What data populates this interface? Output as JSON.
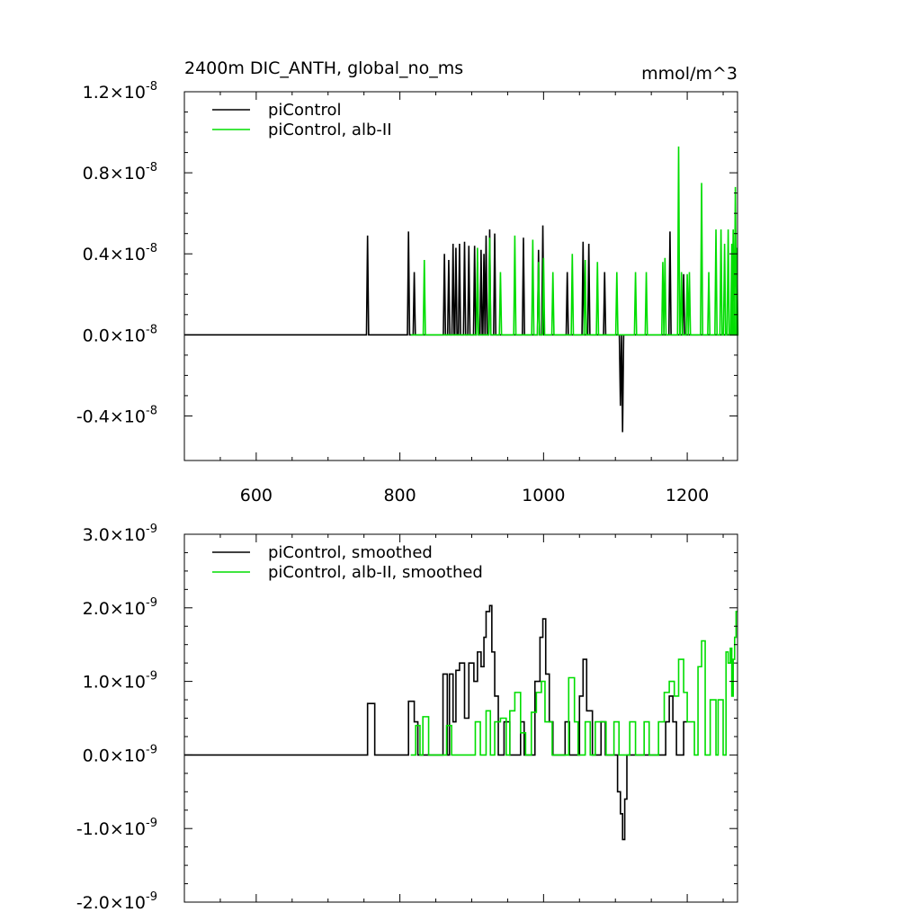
{
  "chart_data": [
    {
      "type": "line",
      "title": "2400m DIC_ANTH, global_no_ms",
      "units": "mmol/m^3",
      "xlim": [
        500,
        1270
      ],
      "ylim": [
        -6.2e-09,
        1.2e-08
      ],
      "x_ticks": [
        600,
        800,
        1000,
        1200
      ],
      "x_tick_labels": [
        "600",
        "800",
        "1000",
        "1200"
      ],
      "y_ticks": [
        {
          "value": 1.2e-08,
          "mantissa": "1.2",
          "exponent": "-8"
        },
        {
          "value": 8e-09,
          "mantissa": "0.8",
          "exponent": "-8"
        },
        {
          "value": 4e-09,
          "mantissa": "0.4",
          "exponent": "-8"
        },
        {
          "value": 0.0,
          "mantissa": "0.0",
          "exponent": "-8"
        },
        {
          "value": -4e-09,
          "mantissa": "-0.4",
          "exponent": "-8"
        }
      ],
      "legend_position": "top-left",
      "series": [
        {
          "name": "piControl",
          "color": "#000000",
          "spikes": [
            [
              755,
              4.9e-09
            ],
            [
              812,
              5.1e-09
            ],
            [
              820,
              3.1e-09
            ],
            [
              862,
              4e-09
            ],
            [
              868,
              3.7e-09
            ],
            [
              874,
              4.5e-09
            ],
            [
              878,
              4.3e-09
            ],
            [
              883,
              4.5e-09
            ],
            [
              890,
              4.6e-09
            ],
            [
              896,
              4.4e-09
            ],
            [
              904,
              4.4e-09
            ],
            [
              908,
              3.6e-09
            ],
            [
              913,
              4.2e-09
            ],
            [
              917,
              4e-09
            ],
            [
              920,
              4.9e-09
            ],
            [
              925,
              5.2e-09
            ],
            [
              932,
              5e-09
            ],
            [
              972,
              4.8e-09
            ],
            [
              993,
              4.2e-09
            ],
            [
              999,
              5.4e-09
            ],
            [
              1033,
              3.1e-09
            ],
            [
              1055,
              4.6e-09
            ],
            [
              1063,
              4.5e-09
            ],
            [
              1085,
              3.1e-09
            ],
            [
              1107,
              -3.5e-09
            ],
            [
              1110,
              -4.8e-09
            ],
            [
              1176,
              5.1e-09
            ],
            [
              1195,
              3e-09
            ]
          ]
        },
        {
          "name": "piControl, alb-II",
          "color": "#00dd00",
          "x_start": 815,
          "spikes": [
            [
              834,
              3.7e-09
            ],
            [
              908,
              4.3e-09
            ],
            [
              925,
              4.8e-09
            ],
            [
              940,
              3.1e-09
            ],
            [
              960,
              4.9e-09
            ],
            [
              985,
              4.7e-09
            ],
            [
              993,
              3.6e-09
            ],
            [
              1000,
              3.8e-09
            ],
            [
              1013,
              3.1e-09
            ],
            [
              1040,
              4e-09
            ],
            [
              1058,
              3.7e-09
            ],
            [
              1075,
              3.6e-09
            ],
            [
              1102,
              3.1e-09
            ],
            [
              1128,
              3.1e-09
            ],
            [
              1143,
              3.1e-09
            ],
            [
              1166,
              3.6e-09
            ],
            [
              1169,
              3.8e-09
            ],
            [
              1188,
              9.3e-09
            ],
            [
              1192,
              3.1e-09
            ],
            [
              1200,
              3e-09
            ],
            [
              1203,
              3.1e-09
            ],
            [
              1220,
              7.5e-09
            ],
            [
              1230,
              3.1e-09
            ],
            [
              1240,
              5.2e-09
            ],
            [
              1247,
              5.2e-09
            ],
            [
              1252,
              4.5e-09
            ],
            [
              1257,
              5.2e-09
            ],
            [
              1262,
              4.5e-09
            ],
            [
              1264,
              5.2e-09
            ],
            [
              1267,
              7.3e-09
            ],
            [
              1269,
              4.3e-09
            ]
          ]
        }
      ]
    },
    {
      "type": "line",
      "title": "",
      "units": "",
      "xlim": [
        500,
        1270
      ],
      "ylim": [
        -2e-09,
        3e-09
      ],
      "x_ticks": [
        600,
        800,
        1000,
        1200
      ],
      "x_tick_labels": [],
      "y_ticks": [
        {
          "value": 3e-09,
          "mantissa": "3.0",
          "exponent": "-9"
        },
        {
          "value": 2e-09,
          "mantissa": "2.0",
          "exponent": "-9"
        },
        {
          "value": 1e-09,
          "mantissa": "1.0",
          "exponent": "-9"
        },
        {
          "value": 0.0,
          "mantissa": "0.0",
          "exponent": "-9"
        },
        {
          "value": -1e-09,
          "mantissa": "-1.0",
          "exponent": "-9"
        },
        {
          "value": -2e-09,
          "mantissa": "-2.0",
          "exponent": "-9"
        }
      ],
      "legend_position": "top-left",
      "series": [
        {
          "name": "piControl, smoothed",
          "color": "#000000",
          "steps": [
            [
              500,
              0
            ],
            [
              755,
              7e-10
            ],
            [
              765,
              0
            ],
            [
              812,
              7.3e-10
            ],
            [
              820,
              4.5e-10
            ],
            [
              825,
              0
            ],
            [
              860,
              1.1e-09
            ],
            [
              866,
              0
            ],
            [
              869,
              1.1e-09
            ],
            [
              874,
              4.5e-10
            ],
            [
              878,
              1.15e-09
            ],
            [
              883,
              1.25e-09
            ],
            [
              890,
              5e-10
            ],
            [
              896,
              1.25e-09
            ],
            [
              903,
              1e-09
            ],
            [
              908,
              1.4e-09
            ],
            [
              913,
              1.2e-09
            ],
            [
              917,
              1.6e-09
            ],
            [
              920,
              1.95e-09
            ],
            [
              925,
              2.03e-09
            ],
            [
              928,
              1.4e-09
            ],
            [
              932,
              8e-10
            ],
            [
              937,
              0
            ],
            [
              945,
              4.5e-10
            ],
            [
              953,
              0
            ],
            [
              968,
              4.5e-10
            ],
            [
              973,
              0
            ],
            [
              988,
              1e-09
            ],
            [
              995,
              1.6e-09
            ],
            [
              999,
              1.85e-09
            ],
            [
              1003,
              1.1e-09
            ],
            [
              1008,
              4.5e-10
            ],
            [
              1013,
              0
            ],
            [
              1030,
              4.5e-10
            ],
            [
              1036,
              0
            ],
            [
              1050,
              8e-10
            ],
            [
              1055,
              1.3e-09
            ],
            [
              1060,
              6e-10
            ],
            [
              1068,
              0
            ],
            [
              1080,
              4.5e-10
            ],
            [
              1086,
              0
            ],
            [
              1103,
              -5e-10
            ],
            [
              1107,
              -8e-10
            ],
            [
              1110,
              -1.15e-09
            ],
            [
              1113,
              -6e-10
            ],
            [
              1116,
              0
            ],
            [
              1170,
              4.5e-10
            ],
            [
              1175,
              8e-10
            ],
            [
              1180,
              4.5e-10
            ],
            [
              1185,
              0
            ],
            [
              1195,
              4.5e-10
            ],
            [
              1200,
              4.5e-10
            ]
          ]
        },
        {
          "name": "piControl, alb-II, smoothed",
          "color": "#00dd00",
          "steps": [
            [
              815,
              0
            ],
            [
              822,
              4e-10
            ],
            [
              828,
              0
            ],
            [
              832,
              5.2e-10
            ],
            [
              840,
              0
            ],
            [
              858,
              0
            ],
            [
              865,
              4e-10
            ],
            [
              872,
              0
            ],
            [
              905,
              4.5e-10
            ],
            [
              912,
              0
            ],
            [
              920,
              6e-10
            ],
            [
              926,
              0
            ],
            [
              932,
              4.5e-10
            ],
            [
              940,
              5e-10
            ],
            [
              948,
              0
            ],
            [
              953,
              6e-10
            ],
            [
              960,
              8.5e-10
            ],
            [
              968,
              3e-10
            ],
            [
              975,
              0
            ],
            [
              983,
              5.8e-10
            ],
            [
              990,
              8.5e-10
            ],
            [
              997,
              1e-09
            ],
            [
              1002,
              4.5e-10
            ],
            [
              1012,
              0
            ],
            [
              1035,
              1.05e-09
            ],
            [
              1043,
              4.5e-10
            ],
            [
              1048,
              0
            ],
            [
              1058,
              4.5e-10
            ],
            [
              1065,
              0
            ],
            [
              1072,
              4.5e-10
            ],
            [
              1080,
              4.5e-10
            ],
            [
              1087,
              0
            ],
            [
              1098,
              4.5e-10
            ],
            [
              1105,
              0
            ],
            [
              1120,
              4.5e-10
            ],
            [
              1128,
              0
            ],
            [
              1140,
              4.5e-10
            ],
            [
              1147,
              0
            ],
            [
              1160,
              4.5e-10
            ],
            [
              1168,
              8.5e-10
            ],
            [
              1175,
              1e-09
            ],
            [
              1182,
              8e-10
            ],
            [
              1188,
              1.3e-09
            ],
            [
              1195,
              8.5e-10
            ],
            [
              1200,
              4.5e-10
            ],
            [
              1205,
              4.5e-10
            ],
            [
              1210,
              0
            ],
            [
              1215,
              1.2e-09
            ],
            [
              1220,
              1.55e-09
            ],
            [
              1225,
              0
            ],
            [
              1232,
              7.5e-10
            ],
            [
              1240,
              0
            ],
            [
              1243,
              7.5e-10
            ],
            [
              1250,
              0
            ],
            [
              1254,
              1.4e-09
            ],
            [
              1257,
              1.25e-09
            ],
            [
              1260,
              1.45e-09
            ],
            [
              1262,
              8e-10
            ],
            [
              1264,
              1.3e-09
            ],
            [
              1266,
              1.6e-09
            ],
            [
              1268,
              1.95e-09
            ],
            [
              1270,
              1.95e-09
            ]
          ]
        }
      ]
    }
  ]
}
